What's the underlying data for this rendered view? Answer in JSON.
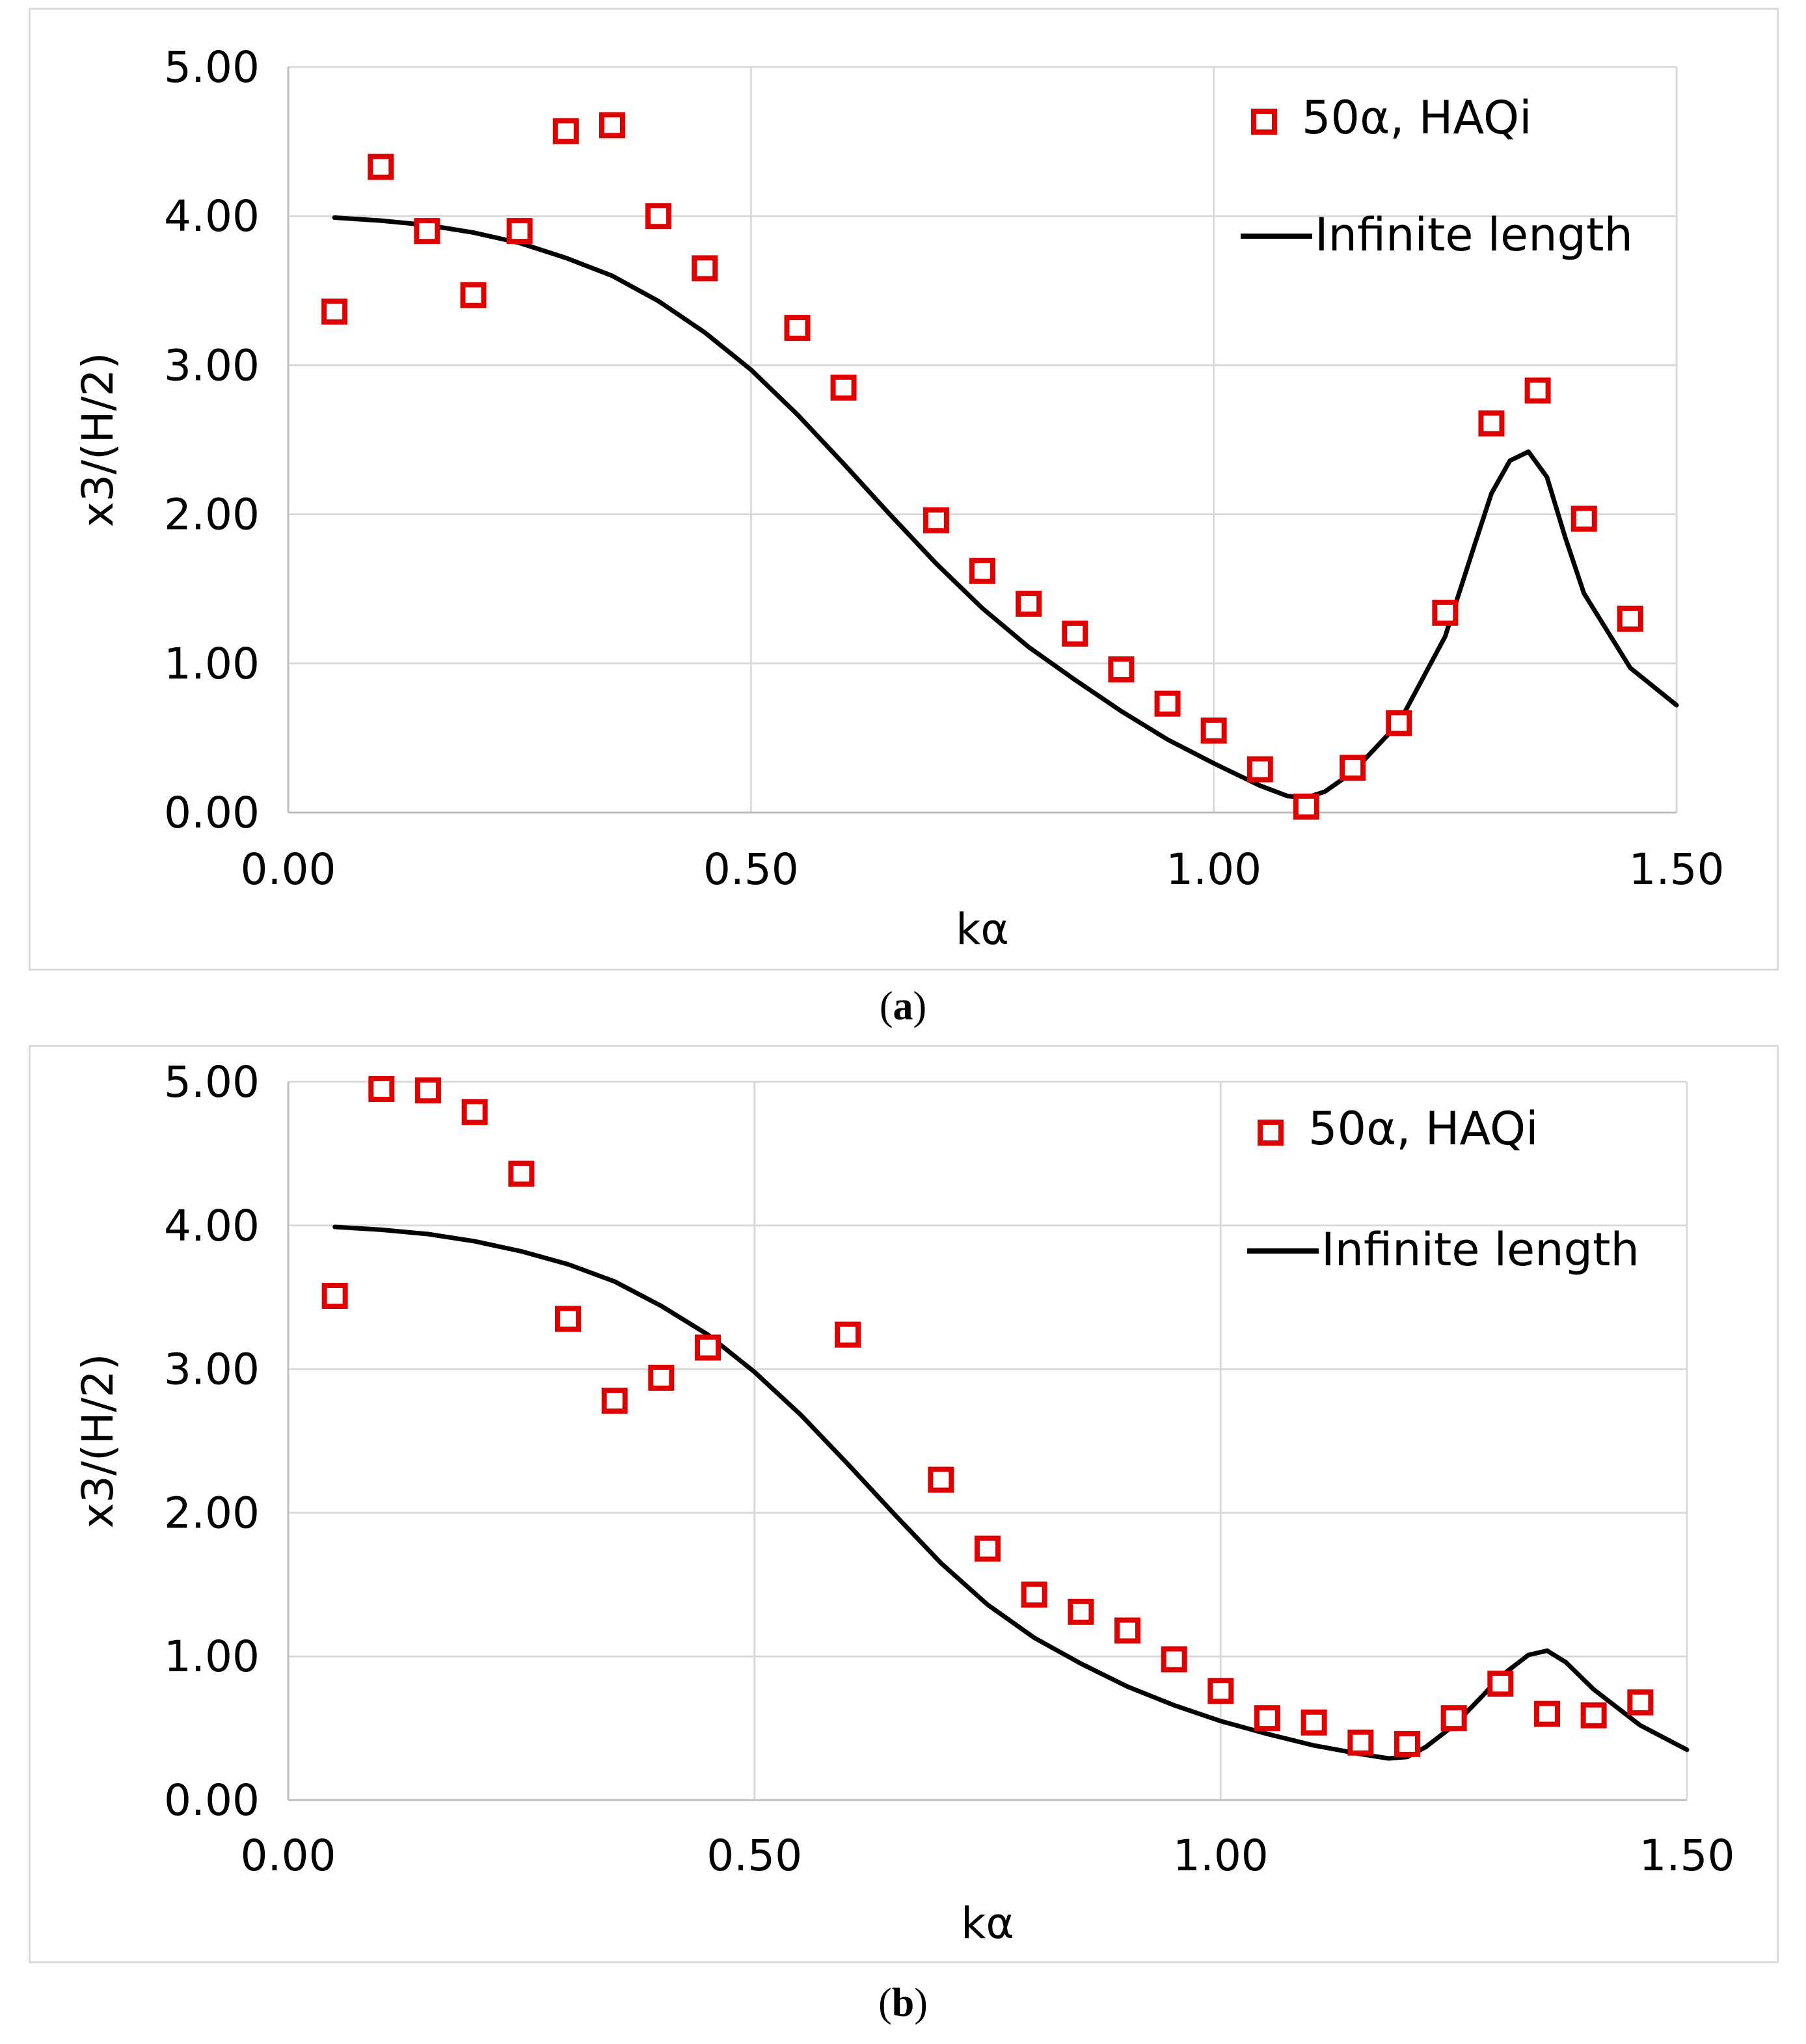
{
  "colors": {
    "marker": "#e00000",
    "line": "#000000",
    "grid": "#d9d9d9",
    "axis": "#bfbfbf",
    "text": "#000000"
  },
  "panels": [
    {
      "caption_letter": "a",
      "chart_data": {
        "type": "scatter",
        "xlabel": "kα",
        "ylabel": "x3/(H/2)",
        "xlim": [
          0,
          1.5
        ],
        "ylim": [
          0,
          5
        ],
        "x_ticks": [
          "0.00",
          "0.50",
          "1.00",
          "1.50"
        ],
        "y_ticks": [
          "0.00",
          "1.00",
          "2.00",
          "3.00",
          "4.00",
          "5.00"
        ],
        "grid": true,
        "legend_position": "top-right",
        "series": [
          {
            "name": "50α, HAQi",
            "kind": "markers",
            "x": [
              0.05,
              0.1,
              0.15,
              0.2,
              0.25,
              0.3,
              0.35,
              0.4,
              0.45,
              0.55,
              0.6,
              0.7,
              0.75,
              0.8,
              0.85,
              0.9,
              0.95,
              1.0,
              1.05,
              1.1,
              1.15,
              1.2,
              1.25,
              1.3,
              1.35,
              1.4,
              1.45
            ],
            "y": [
              3.36,
              4.33,
              3.9,
              3.47,
              3.9,
              4.57,
              4.61,
              4.0,
              3.65,
              3.25,
              2.85,
              1.96,
              1.62,
              1.4,
              1.2,
              0.96,
              0.73,
              0.55,
              0.29,
              0.04,
              0.3,
              0.6,
              1.34,
              2.61,
              2.83,
              1.97,
              1.3
            ]
          },
          {
            "name": "Infinite length",
            "kind": "line",
            "x": [
              0.05,
              0.1,
              0.15,
              0.2,
              0.25,
              0.3,
              0.35,
              0.4,
              0.45,
              0.5,
              0.55,
              0.6,
              0.65,
              0.7,
              0.75,
              0.8,
              0.85,
              0.9,
              0.95,
              1.0,
              1.05,
              1.08,
              1.1,
              1.12,
              1.15,
              1.2,
              1.25,
              1.28,
              1.3,
              1.32,
              1.34,
              1.36,
              1.38,
              1.4,
              1.45,
              1.5
            ],
            "y": [
              3.99,
              3.97,
              3.94,
              3.89,
              3.82,
              3.72,
              3.6,
              3.43,
              3.22,
              2.97,
              2.67,
              2.34,
              2.0,
              1.67,
              1.37,
              1.11,
              0.89,
              0.68,
              0.49,
              0.33,
              0.18,
              0.11,
              0.1,
              0.14,
              0.27,
              0.6,
              1.18,
              1.76,
              2.14,
              2.36,
              2.42,
              2.25,
              1.84,
              1.47,
              0.97,
              0.72
            ]
          }
        ]
      }
    },
    {
      "caption_letter": "b",
      "chart_data": {
        "type": "scatter",
        "xlabel": "kα",
        "ylabel": "x3/(H/2)",
        "xlim": [
          0,
          1.5
        ],
        "ylim": [
          0,
          5
        ],
        "x_ticks": [
          "0.00",
          "0.50",
          "1.00",
          "1.50"
        ],
        "y_ticks": [
          "0.00",
          "1.00",
          "2.00",
          "3.00",
          "4.00",
          "5.00"
        ],
        "grid": true,
        "legend_position": "top-right",
        "series": [
          {
            "name": "50α, HAQi",
            "kind": "markers",
            "x": [
              0.05,
              0.1,
              0.15,
              0.2,
              0.25,
              0.3,
              0.35,
              0.4,
              0.45,
              0.6,
              0.7,
              0.75,
              0.8,
              0.85,
              0.9,
              0.95,
              1.0,
              1.05,
              1.1,
              1.15,
              1.2,
              1.25,
              1.3,
              1.35,
              1.4,
              1.45
            ],
            "y": [
              3.51,
              4.95,
              4.94,
              4.79,
              4.36,
              3.35,
              2.78,
              2.94,
              3.15,
              3.24,
              2.23,
              1.75,
              1.43,
              1.31,
              1.18,
              0.98,
              0.76,
              0.57,
              0.54,
              0.4,
              0.39,
              0.57,
              0.81,
              0.6,
              0.59,
              0.68
            ]
          },
          {
            "name": "Infinite length",
            "kind": "line",
            "x": [
              0.05,
              0.1,
              0.15,
              0.2,
              0.25,
              0.3,
              0.35,
              0.4,
              0.45,
              0.5,
              0.55,
              0.6,
              0.65,
              0.7,
              0.75,
              0.8,
              0.85,
              0.9,
              0.95,
              1.0,
              1.05,
              1.1,
              1.15,
              1.18,
              1.2,
              1.22,
              1.25,
              1.28,
              1.3,
              1.33,
              1.35,
              1.37,
              1.4,
              1.45,
              1.5
            ],
            "y": [
              3.99,
              3.97,
              3.94,
              3.89,
              3.82,
              3.73,
              3.61,
              3.44,
              3.24,
              2.98,
              2.68,
              2.34,
              1.99,
              1.65,
              1.36,
              1.13,
              0.95,
              0.79,
              0.66,
              0.55,
              0.46,
              0.38,
              0.32,
              0.29,
              0.3,
              0.37,
              0.52,
              0.72,
              0.86,
              1.01,
              1.04,
              0.96,
              0.77,
              0.52,
              0.35
            ]
          }
        ]
      }
    }
  ]
}
